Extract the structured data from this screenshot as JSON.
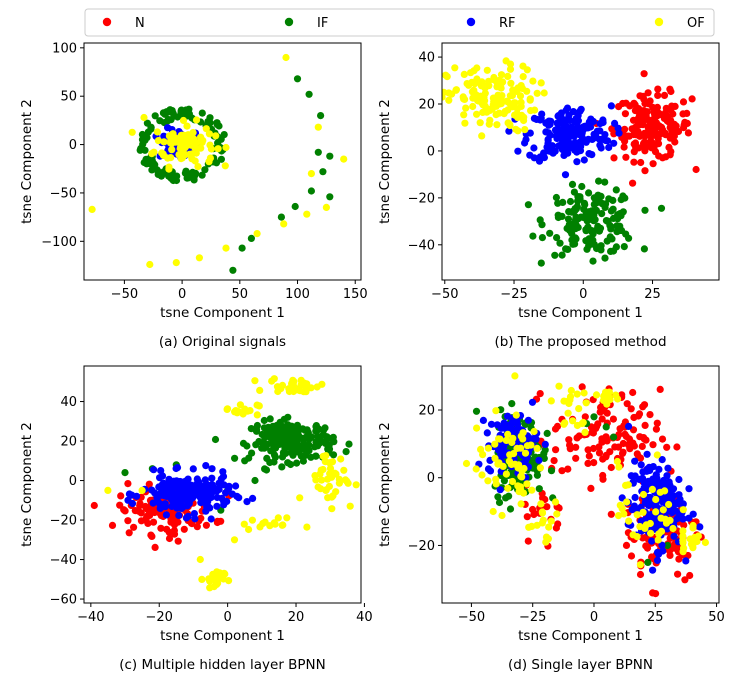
{
  "colors": {
    "N": "#ff0000",
    "IF": "#008000",
    "RF": "#0000ff",
    "OF": "#ffff00"
  },
  "legend": [
    {
      "label": "N",
      "color": "#ff0000"
    },
    {
      "label": "IF",
      "color": "#008000"
    },
    {
      "label": "RF",
      "color": "#0000ff"
    },
    {
      "label": "OF",
      "color": "#ffff00"
    }
  ],
  "chart_data": [
    {
      "type": "scatter",
      "caption": "(a) Original signals",
      "xlabel": "tsne Component 1",
      "ylabel": "tsne Component 2",
      "xlim": [
        -85,
        155
      ],
      "ylim": [
        -140,
        105
      ],
      "xticks": [
        -50,
        0,
        50,
        100,
        150
      ],
      "yticks": [
        -100,
        -50,
        0,
        50,
        100
      ],
      "series": [
        {
          "name": "N",
          "clusters": [
            {
              "cx": 0,
              "cy": 3,
              "rx": 8,
              "ry": 10,
              "n": 25
            }
          ]
        },
        {
          "name": "IF",
          "clusters": [
            {
              "ring": true,
              "cx": 0,
              "cy": 0,
              "r": 38,
              "n": 120
            }
          ],
          "points": [
            [
              100,
              68
            ],
            [
              110,
              52
            ],
            [
              120,
              30
            ],
            [
              128,
              -12
            ],
            [
              122,
              -28
            ],
            [
              112,
              -48
            ],
            [
              128,
              -54
            ],
            [
              98,
              -64
            ],
            [
              86,
              -75
            ],
            [
              60,
              -97
            ],
            [
              52,
              -107
            ],
            [
              44,
              -130
            ],
            [
              118,
              -8
            ]
          ]
        },
        {
          "name": "RF",
          "clusters": [
            {
              "cx": -2,
              "cy": 0,
              "rx": 18,
              "ry": 16,
              "n": 60
            }
          ]
        },
        {
          "name": "OF",
          "clusters": [
            {
              "cx": 2,
              "cy": 0,
              "rx": 26,
              "ry": 22,
              "n": 90
            }
          ],
          "points": [
            [
              -78,
              -67
            ],
            [
              -28,
              -124
            ],
            [
              -5,
              -122
            ],
            [
              15,
              -117
            ],
            [
              38,
              -107
            ],
            [
              65,
              -92
            ],
            [
              88,
              -82
            ],
            [
              108,
              -72
            ],
            [
              125,
              -65
            ],
            [
              112,
              -30
            ],
            [
              140,
              -15
            ],
            [
              118,
              18
            ],
            [
              90,
              90
            ],
            [
              -33,
              28
            ]
          ]
        }
      ]
    },
    {
      "type": "scatter",
      "caption": "(b) The proposed method",
      "xlabel": "tsne Component 1",
      "ylabel": "tsne Component 2",
      "xlim": [
        -51,
        49
      ],
      "ylim": [
        -55,
        46
      ],
      "xticks": [
        -50,
        -25,
        0,
        25
      ],
      "yticks": [
        -40,
        -20,
        0,
        20,
        40
      ],
      "series": [
        {
          "name": "N",
          "clusters": [
            {
              "cx": 25,
              "cy": 10,
              "rx": 14,
              "ry": 14,
              "n": 170
            }
          ]
        },
        {
          "name": "IF",
          "clusters": [
            {
              "cx": 3,
              "cy": -30,
              "rx": 16,
              "ry": 14,
              "n": 160
            }
          ]
        },
        {
          "name": "RF",
          "clusters": [
            {
              "cx": -5,
              "cy": 7,
              "rx": 15,
              "ry": 12,
              "n": 180
            }
          ]
        },
        {
          "name": "OF",
          "clusters": [
            {
              "cx": -33,
              "cy": 22,
              "rx": 16,
              "ry": 14,
              "n": 140
            }
          ]
        }
      ]
    },
    {
      "type": "scatter",
      "caption": "(c) Multiple hidden layer BPNN",
      "xlabel": "tsne Component 1",
      "ylabel": "tsne Component 2",
      "xlim": [
        -42,
        39
      ],
      "ylim": [
        -62,
        58
      ],
      "xticks": [
        -40,
        -20,
        0,
        20,
        40
      ],
      "yticks": [
        -60,
        -40,
        -20,
        0,
        20,
        40
      ],
      "series": [
        {
          "name": "N",
          "clusters": [
            {
              "cx": -18,
              "cy": -15,
              "rx": 14,
              "ry": 12,
              "n": 130
            }
          ]
        },
        {
          "name": "IF",
          "clusters": [
            {
              "cx": 19,
              "cy": 20,
              "rx": 12,
              "ry": 10,
              "n": 190
            }
          ],
          "points": [
            [
              -22,
              6
            ],
            [
              -15,
              8
            ],
            [
              5,
              10
            ],
            [
              0,
              -5
            ],
            [
              -30,
              4
            ],
            [
              -2,
              -15
            ],
            [
              8,
              0
            ]
          ]
        },
        {
          "name": "RF",
          "clusters": [
            {
              "cx": -12,
              "cy": -7,
              "rx": 13,
              "ry": 10,
              "n": 200
            }
          ]
        },
        {
          "name": "OF",
          "clusters": [
            {
              "cx": 20,
              "cy": 48,
              "rx": 8,
              "ry": 4,
              "n": 30
            },
            {
              "cx": 4,
              "cy": 36,
              "rx": 5,
              "ry": 3,
              "n": 14
            },
            {
              "cx": 30,
              "cy": 2,
              "rx": 7,
              "ry": 14,
              "n": 40
            },
            {
              "cx": -4,
              "cy": -50,
              "rx": 3,
              "ry": 5,
              "n": 25
            },
            {
              "cx": 12,
              "cy": -22,
              "rx": 8,
              "ry": 3,
              "n": 14
            }
          ],
          "points": [
            [
              -25,
              -5
            ],
            [
              -35,
              -5
            ],
            [
              -8,
              -40
            ],
            [
              2,
              -30
            ]
          ]
        }
      ]
    },
    {
      "type": "scatter",
      "caption": "(d) Single layer BPNN",
      "xlabel": "tsne Component 1",
      "ylabel": "tsne Component 2",
      "xlim": [
        -62,
        51
      ],
      "ylim": [
        -37,
        33
      ],
      "xticks": [
        -50,
        -25,
        0,
        25,
        50
      ],
      "yticks": [
        -20,
        0,
        20
      ],
      "series": [
        {
          "name": "N",
          "clusters": [
            {
              "cx": 5,
              "cy": 12,
              "rx": 22,
              "ry": 14,
              "n": 120
            },
            {
              "cx": 28,
              "cy": -15,
              "rx": 16,
              "ry": 16,
              "n": 100
            },
            {
              "cx": -20,
              "cy": -10,
              "rx": 8,
              "ry": 8,
              "n": 20
            }
          ]
        },
        {
          "name": "IF",
          "clusters": [
            {
              "cx": -31,
              "cy": 7,
              "rx": 10,
              "ry": 12,
              "n": 180
            }
          ],
          "points": [
            [
              0,
              18
            ],
            [
              5,
              15
            ],
            [
              8,
              12
            ],
            [
              -3,
              16
            ],
            [
              22,
              -25
            ],
            [
              30,
              -20
            ]
          ]
        },
        {
          "name": "RF",
          "clusters": [
            {
              "cx": -33,
              "cy": 10,
              "rx": 10,
              "ry": 9,
              "n": 100
            },
            {
              "cx": 25,
              "cy": -8,
              "rx": 11,
              "ry": 13,
              "n": 180
            }
          ]
        },
        {
          "name": "OF",
          "clusters": [
            {
              "cx": -35,
              "cy": 5,
              "rx": 15,
              "ry": 14,
              "n": 60
            },
            {
              "cx": -10,
              "cy": 20,
              "rx": 8,
              "ry": 8,
              "n": 20
            },
            {
              "cx": -20,
              "cy": -15,
              "rx": 8,
              "ry": 8,
              "n": 15
            },
            {
              "cx": 22,
              "cy": -10,
              "rx": 12,
              "ry": 14,
              "n": 40
            },
            {
              "cx": 40,
              "cy": -18,
              "rx": 5,
              "ry": 5,
              "n": 15
            },
            {
              "cx": 5,
              "cy": 25,
              "rx": 6,
              "ry": 5,
              "n": 12
            }
          ]
        }
      ]
    }
  ]
}
